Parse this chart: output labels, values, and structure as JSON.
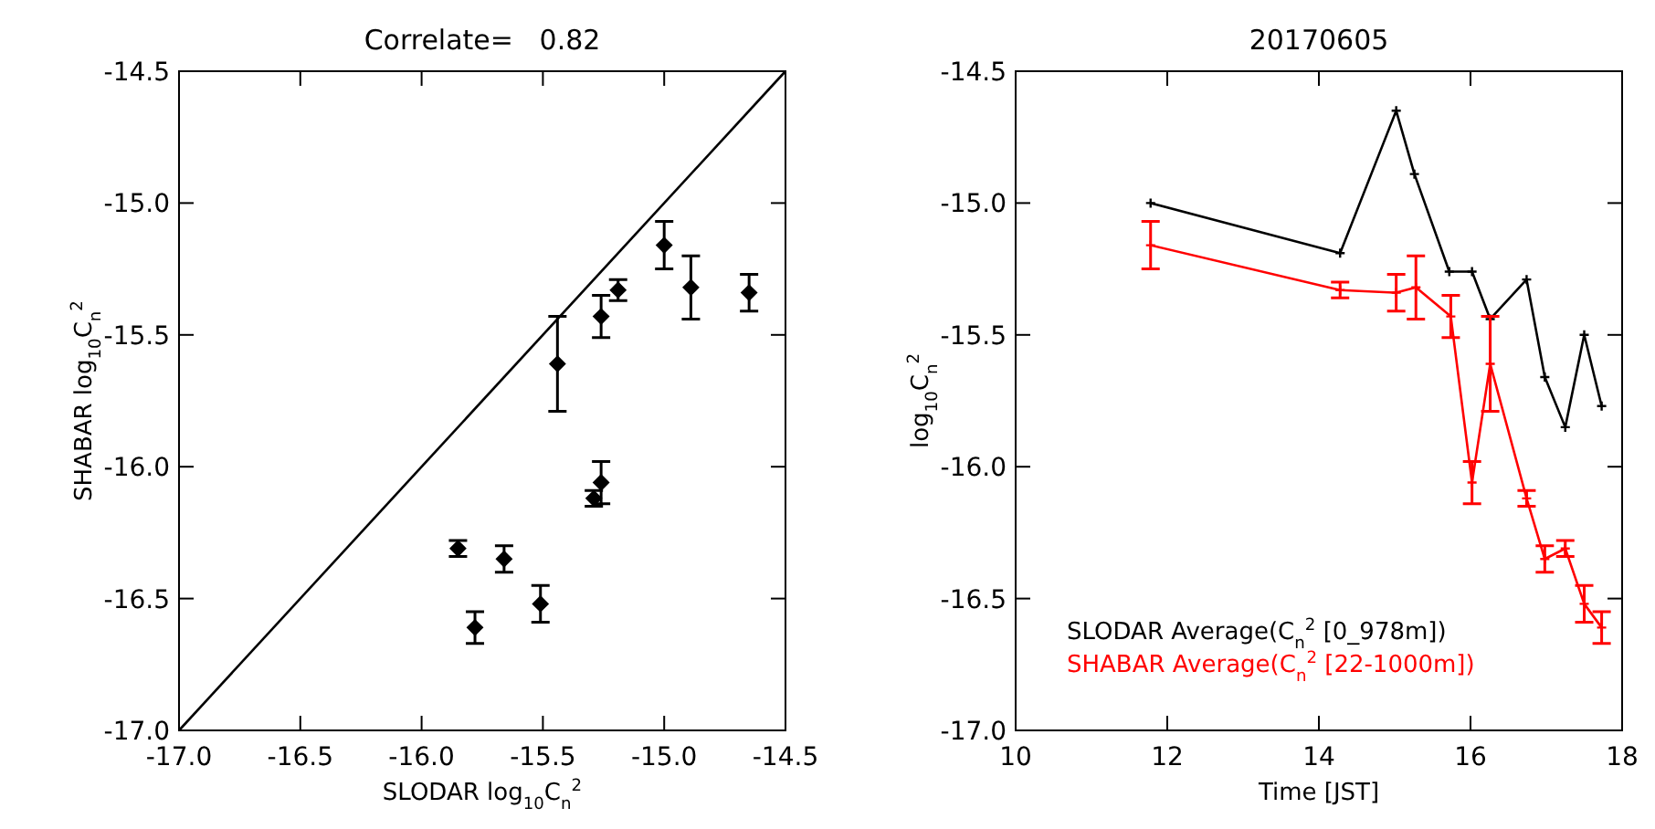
{
  "chart_data": [
    {
      "type": "scatter",
      "title": "Correlate=   0.82",
      "xlabel": "SLODAR log$_{10}$C$_{n}$$^{2}$",
      "ylabel": "SHABAR log$_{10}$C$_{n}$$^{2}$",
      "xlim": [
        -17,
        -14.5
      ],
      "ylim": [
        -17,
        -14.5
      ],
      "xticks": [
        {
          "value": -17,
          "label": "-17.0"
        },
        {
          "value": -16.5,
          "label": "-16.5"
        },
        {
          "value": -16,
          "label": "-16.0"
        },
        {
          "value": -15.5,
          "label": "-15.5"
        },
        {
          "value": -15,
          "label": "-15.0"
        },
        {
          "value": -14.5,
          "label": "-14.5"
        }
      ],
      "yticks": [
        {
          "value": -17,
          "label": "-17.0"
        },
        {
          "value": -16.5,
          "label": "-16.5"
        },
        {
          "value": -16,
          "label": "-16.0"
        },
        {
          "value": -15.5,
          "label": "-15.5"
        },
        {
          "value": -15,
          "label": "-15.0"
        },
        {
          "value": -14.5,
          "label": "-14.5"
        }
      ],
      "grid": false,
      "legend": false,
      "series": [
        {
          "color": "#000000",
          "marker": "diamond",
          "x": [
            -15.85,
            -15.78,
            -15.66,
            -15.51,
            -15.44,
            -15.29,
            -15.26,
            -15.26,
            -15.19,
            -15.0,
            -14.89,
            -14.65
          ],
          "values": [
            -16.31,
            -16.61,
            -16.35,
            -16.52,
            -15.61,
            -16.12,
            -16.06,
            -15.43,
            -15.33,
            -15.16,
            -15.32,
            -15.34
          ],
          "errors": [
            0.03,
            0.06,
            0.05,
            0.07,
            0.18,
            0.03,
            0.08,
            0.08,
            0.04,
            0.09,
            0.12,
            0.07
          ]
        },
        {
          "type": "line",
          "color": "#000000",
          "marker": "none",
          "x": [
            -17,
            -14.5
          ],
          "values": [
            -17,
            -14.5
          ]
        }
      ]
    },
    {
      "type": "line",
      "title": "20170605",
      "xlabel": "Time [JST]",
      "ylabel": "log$_{10}$C$_{n}$$^{2}$",
      "xlim": [
        10,
        18
      ],
      "ylim": [
        -17,
        -14.5
      ],
      "xticks": [
        10,
        12,
        14,
        16,
        18
      ],
      "yticks": [
        {
          "value": -17,
          "label": "-17.0"
        },
        {
          "value": -16.5,
          "label": "-16.5"
        },
        {
          "value": -16,
          "label": "-16.0"
        },
        {
          "value": -15.5,
          "label": "-15.5"
        },
        {
          "value": -15,
          "label": "-15.0"
        },
        {
          "value": -14.5,
          "label": "-14.5"
        }
      ],
      "grid": false,
      "legend": "bottom left",
      "series": [
        {
          "name": "SLODAR Average(C$_{n}$$^{2}$ [0_978m])",
          "color": "#000000",
          "marker": "cross",
          "x": [
            11.78,
            14.28,
            15.02,
            15.26,
            15.72,
            16.02,
            16.26,
            16.74,
            16.98,
            17.25,
            17.5,
            17.73
          ],
          "values": [
            -15.0,
            -15.19,
            -14.65,
            -14.89,
            -15.26,
            -15.26,
            -15.44,
            -15.29,
            -15.66,
            -15.85,
            -15.5,
            -15.77
          ]
        },
        {
          "name": "SHABAR Average(C$_{n}$$^{2}$ [22-1000m])",
          "color": "#ff0000",
          "marker": "cross",
          "x": [
            11.78,
            14.28,
            15.02,
            15.28,
            15.74,
            16.02,
            16.26,
            16.74,
            16.98,
            17.25,
            17.5,
            17.73
          ],
          "values": [
            -15.16,
            -15.33,
            -15.34,
            -15.32,
            -15.43,
            -16.06,
            -15.61,
            -16.12,
            -16.35,
            -16.31,
            -16.52,
            -16.61
          ],
          "errors": [
            0.09,
            0.03,
            0.07,
            0.12,
            0.08,
            0.08,
            0.18,
            0.03,
            0.05,
            0.03,
            0.07,
            0.06
          ]
        }
      ]
    }
  ]
}
